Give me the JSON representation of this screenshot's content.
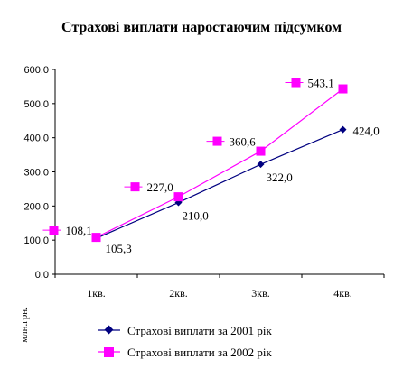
{
  "chart_data": {
    "type": "line",
    "title": "Страхові виплати наростаючим підсумком",
    "ylabel": "млн.грн.",
    "xlabel": "",
    "categories": [
      "1кв.",
      "2кв.",
      "3кв.",
      "4кв."
    ],
    "yticks": [
      "0,0",
      "100,0",
      "200,0",
      "300,0",
      "400,0",
      "500,0",
      "600,0"
    ],
    "ylim": [
      0,
      600
    ],
    "grid": false,
    "legend_position": "bottom",
    "series": [
      {
        "name": "Страхові виплати за 2001 рік",
        "values": [
          105.3,
          210.0,
          322.0,
          424.0
        ],
        "labels": [
          "105,3",
          "210,0",
          "322,0",
          "424,0"
        ],
        "color": "#000080",
        "marker": "diamond"
      },
      {
        "name": "Страхові виплати за 2002 рік",
        "values": [
          108.1,
          227.0,
          360.6,
          543.1
        ],
        "labels": [
          "108,1",
          "227,0",
          "360,6",
          "543,1"
        ],
        "color": "#FF00FF",
        "marker": "square"
      }
    ]
  }
}
